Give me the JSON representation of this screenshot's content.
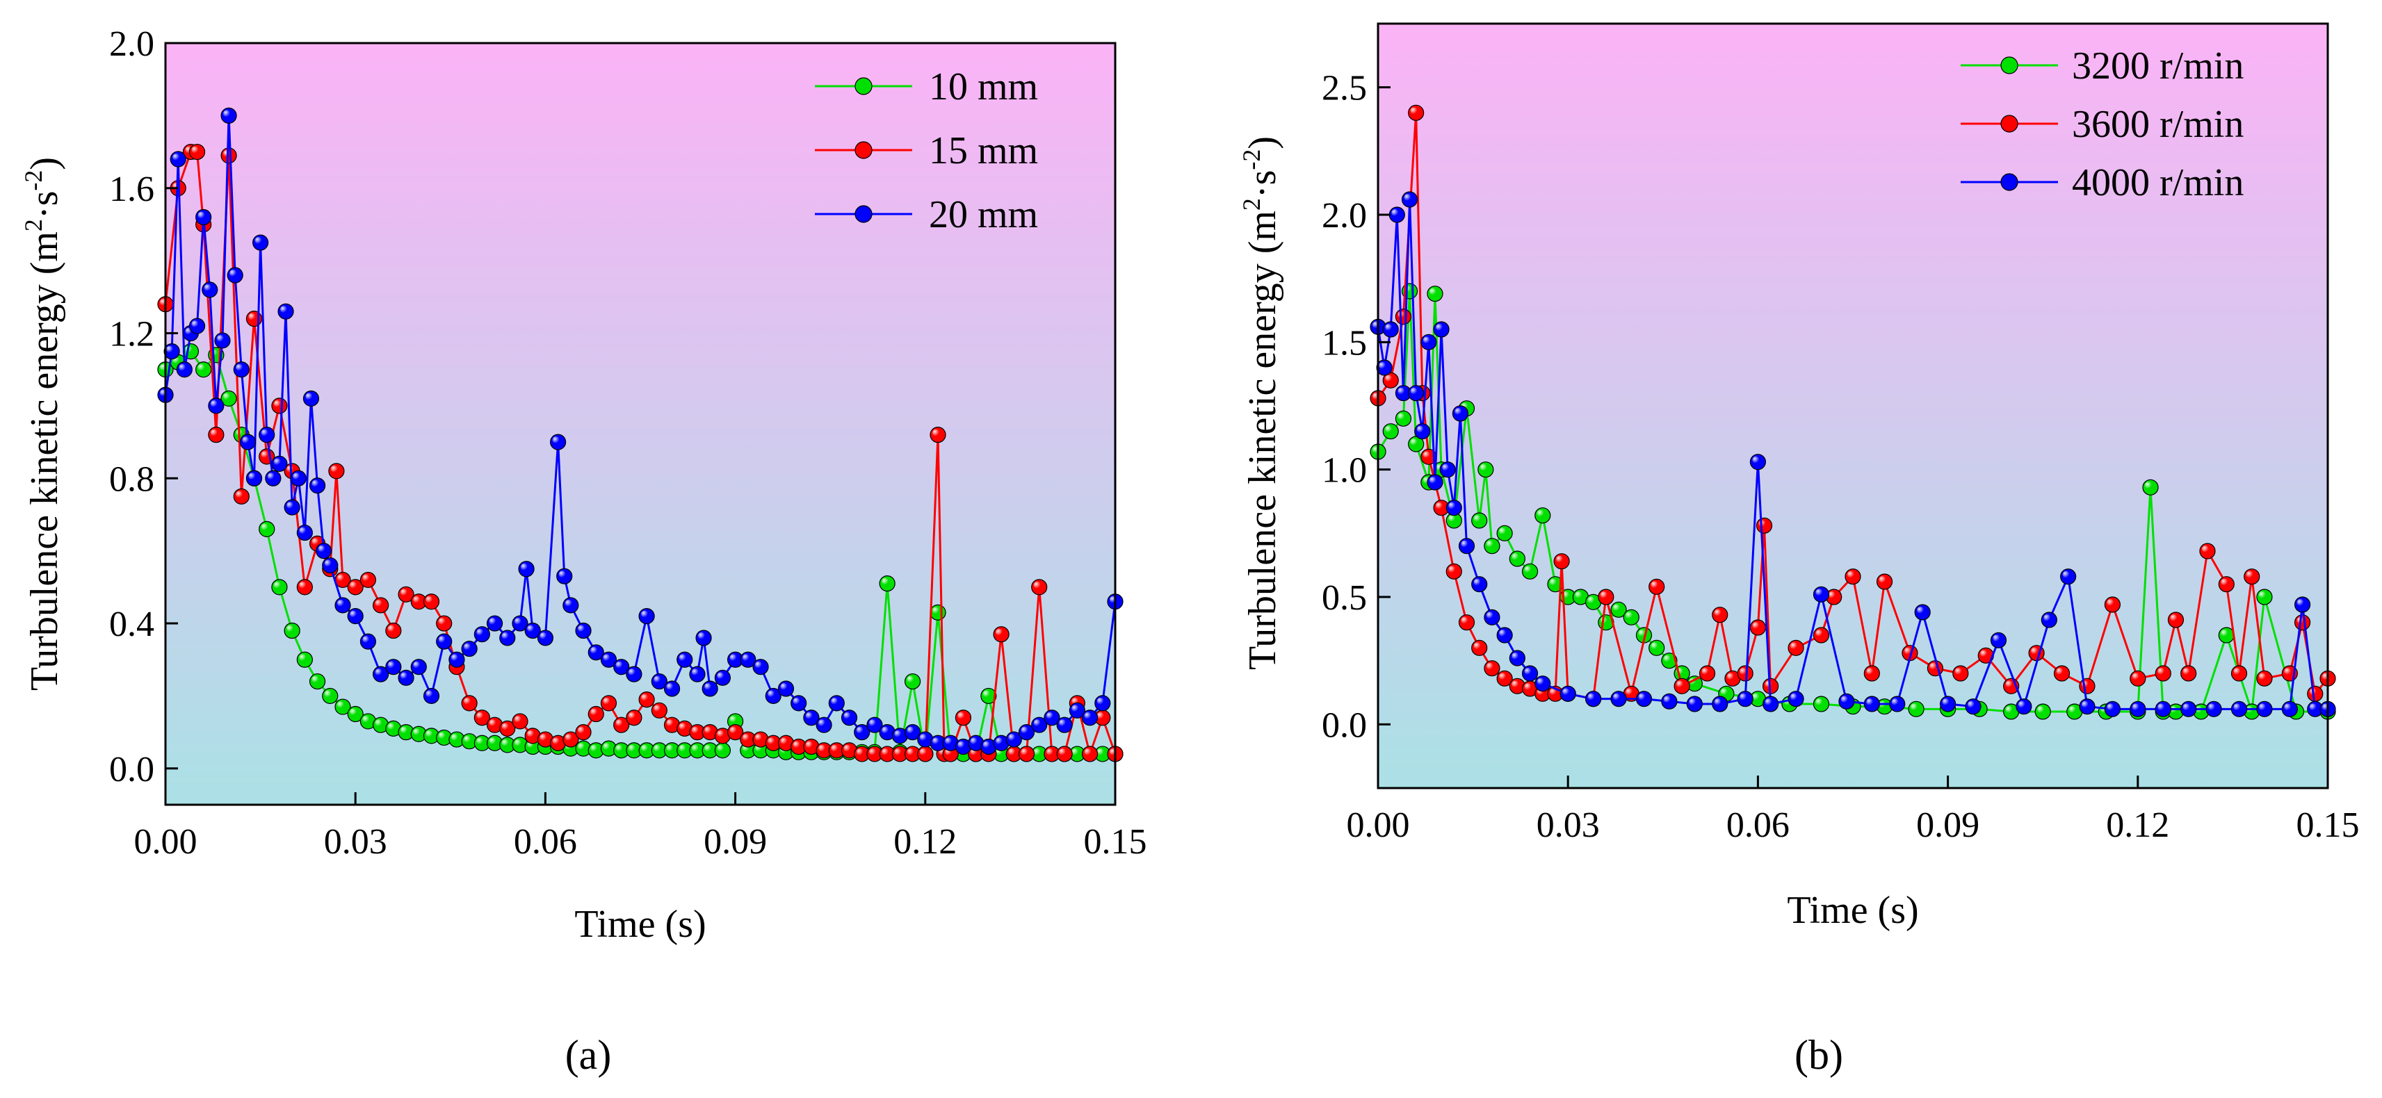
{
  "figure": {
    "panel_labels": [
      "(a)",
      "(b)"
    ]
  },
  "colors": {
    "series_green": "#00e000",
    "series_red": "#ff0000",
    "series_blue": "#0000ff",
    "bg_top": "#fbb3f6",
    "bg_bottom": "#abe1e6"
  },
  "chart_data": [
    {
      "type": "line",
      "panel": "a",
      "title": "",
      "xlabel": "Time (s)",
      "ylabel_main": "Turbulence kinetic energy (m",
      "ylabel_unit": "2",
      "ylabel_mid": "·s",
      "ylabel_unit2": "-2",
      "ylabel_tail": ")",
      "xlim": [
        0.0,
        0.15
      ],
      "ylim": [
        -0.1,
        2.0
      ],
      "xticks": [
        0.0,
        0.03,
        0.06,
        0.09,
        0.12,
        0.15
      ],
      "xtick_labels": [
        "0.00",
        "0.03",
        "0.06",
        "0.09",
        "0.12",
        "0.15"
      ],
      "yticks": [
        0.0,
        0.4,
        0.8,
        1.2,
        1.6,
        2.0
      ],
      "ytick_labels": [
        "0.0",
        "0.4",
        "0.8",
        "1.2",
        "1.6",
        "2.0"
      ],
      "legend_position": "top-right",
      "series": [
        {
          "name": "10 mm",
          "color": "#00e000",
          "x": [
            0.0,
            0.002,
            0.004,
            0.006,
            0.008,
            0.01,
            0.012,
            0.014,
            0.016,
            0.018,
            0.02,
            0.022,
            0.024,
            0.026,
            0.028,
            0.03,
            0.032,
            0.034,
            0.036,
            0.038,
            0.04,
            0.042,
            0.044,
            0.046,
            0.048,
            0.05,
            0.052,
            0.054,
            0.056,
            0.058,
            0.06,
            0.062,
            0.064,
            0.066,
            0.068,
            0.07,
            0.072,
            0.074,
            0.076,
            0.078,
            0.08,
            0.082,
            0.084,
            0.086,
            0.088,
            0.09,
            0.092,
            0.094,
            0.096,
            0.098,
            0.1,
            0.102,
            0.104,
            0.106,
            0.108,
            0.11,
            0.112,
            0.114,
            0.116,
            0.118,
            0.12,
            0.122,
            0.124,
            0.126,
            0.128,
            0.13,
            0.132,
            0.134,
            0.136,
            0.138,
            0.14,
            0.142,
            0.144,
            0.146,
            0.148,
            0.15
          ],
          "values": [
            1.1,
            1.12,
            1.15,
            1.1,
            1.14,
            1.02,
            0.92,
            0.8,
            0.66,
            0.5,
            0.38,
            0.3,
            0.24,
            0.2,
            0.17,
            0.15,
            0.13,
            0.12,
            0.11,
            0.1,
            0.095,
            0.09,
            0.085,
            0.08,
            0.075,
            0.07,
            0.07,
            0.065,
            0.065,
            0.06,
            0.06,
            0.06,
            0.055,
            0.055,
            0.05,
            0.055,
            0.05,
            0.05,
            0.05,
            0.05,
            0.05,
            0.05,
            0.05,
            0.05,
            0.05,
            0.13,
            0.05,
            0.05,
            0.05,
            0.045,
            0.045,
            0.045,
            0.045,
            0.045,
            0.045,
            0.045,
            0.045,
            0.51,
            0.045,
            0.24,
            0.04,
            0.43,
            0.04,
            0.04,
            0.04,
            0.2,
            0.04,
            0.04,
            0.04,
            0.04,
            0.04,
            0.04,
            0.04,
            0.04,
            0.04,
            0.04
          ]
        },
        {
          "name": "15 mm",
          "color": "#ff0000",
          "x": [
            0.0,
            0.002,
            0.004,
            0.005,
            0.006,
            0.008,
            0.01,
            0.012,
            0.014,
            0.016,
            0.018,
            0.02,
            0.022,
            0.024,
            0.026,
            0.027,
            0.028,
            0.03,
            0.032,
            0.034,
            0.036,
            0.038,
            0.04,
            0.042,
            0.044,
            0.046,
            0.048,
            0.05,
            0.052,
            0.054,
            0.056,
            0.058,
            0.06,
            0.062,
            0.064,
            0.066,
            0.068,
            0.07,
            0.072,
            0.074,
            0.076,
            0.078,
            0.08,
            0.082,
            0.084,
            0.086,
            0.088,
            0.09,
            0.092,
            0.094,
            0.096,
            0.098,
            0.1,
            0.102,
            0.104,
            0.106,
            0.108,
            0.11,
            0.112,
            0.114,
            0.116,
            0.118,
            0.12,
            0.122,
            0.123,
            0.124,
            0.126,
            0.128,
            0.13,
            0.132,
            0.134,
            0.136,
            0.138,
            0.14,
            0.142,
            0.144,
            0.146,
            0.148,
            0.15
          ],
          "values": [
            1.28,
            1.6,
            1.7,
            1.7,
            1.5,
            0.92,
            1.69,
            0.75,
            1.24,
            0.86,
            1.0,
            0.82,
            0.5,
            0.62,
            0.55,
            0.82,
            0.52,
            0.5,
            0.52,
            0.45,
            0.38,
            0.48,
            0.46,
            0.46,
            0.4,
            0.28,
            0.18,
            0.14,
            0.12,
            0.11,
            0.13,
            0.09,
            0.08,
            0.07,
            0.08,
            0.1,
            0.15,
            0.18,
            0.12,
            0.14,
            0.19,
            0.16,
            0.12,
            0.11,
            0.1,
            0.1,
            0.09,
            0.1,
            0.08,
            0.08,
            0.07,
            0.07,
            0.06,
            0.06,
            0.05,
            0.05,
            0.05,
            0.04,
            0.04,
            0.04,
            0.04,
            0.04,
            0.04,
            0.92,
            0.04,
            0.04,
            0.14,
            0.04,
            0.04,
            0.37,
            0.04,
            0.04,
            0.5,
            0.04,
            0.04,
            0.18,
            0.04,
            0.14,
            0.04
          ]
        },
        {
          "name": "20 mm",
          "color": "#0000ff",
          "x": [
            0.0,
            0.001,
            0.002,
            0.003,
            0.004,
            0.005,
            0.006,
            0.007,
            0.008,
            0.009,
            0.01,
            0.011,
            0.012,
            0.013,
            0.014,
            0.015,
            0.016,
            0.017,
            0.018,
            0.019,
            0.02,
            0.021,
            0.022,
            0.023,
            0.024,
            0.025,
            0.026,
            0.028,
            0.03,
            0.032,
            0.034,
            0.036,
            0.038,
            0.04,
            0.042,
            0.044,
            0.046,
            0.048,
            0.05,
            0.052,
            0.054,
            0.056,
            0.057,
            0.058,
            0.06,
            0.062,
            0.063,
            0.064,
            0.066,
            0.068,
            0.07,
            0.072,
            0.074,
            0.076,
            0.078,
            0.08,
            0.082,
            0.084,
            0.085,
            0.086,
            0.088,
            0.09,
            0.092,
            0.094,
            0.096,
            0.098,
            0.1,
            0.102,
            0.104,
            0.106,
            0.108,
            0.11,
            0.112,
            0.114,
            0.116,
            0.118,
            0.12,
            0.122,
            0.124,
            0.126,
            0.128,
            0.13,
            0.132,
            0.134,
            0.136,
            0.138,
            0.14,
            0.142,
            0.144,
            0.146,
            0.148,
            0.15
          ],
          "values": [
            1.03,
            1.15,
            1.68,
            1.1,
            1.2,
            1.22,
            1.52,
            1.32,
            1.0,
            1.18,
            1.8,
            1.36,
            1.1,
            0.9,
            0.8,
            1.45,
            0.92,
            0.8,
            0.84,
            1.26,
            0.72,
            0.8,
            0.65,
            1.02,
            0.78,
            0.6,
            0.56,
            0.45,
            0.42,
            0.35,
            0.26,
            0.28,
            0.25,
            0.28,
            0.2,
            0.35,
            0.3,
            0.33,
            0.37,
            0.4,
            0.36,
            0.4,
            0.55,
            0.38,
            0.36,
            0.9,
            0.53,
            0.45,
            0.38,
            0.32,
            0.3,
            0.28,
            0.26,
            0.42,
            0.24,
            0.22,
            0.3,
            0.26,
            0.36,
            0.22,
            0.25,
            0.3,
            0.3,
            0.28,
            0.2,
            0.22,
            0.18,
            0.14,
            0.12,
            0.18,
            0.14,
            0.1,
            0.12,
            0.1,
            0.09,
            0.1,
            0.08,
            0.07,
            0.07,
            0.06,
            0.07,
            0.06,
            0.07,
            0.08,
            0.1,
            0.12,
            0.14,
            0.12,
            0.16,
            0.14,
            0.18,
            0.46
          ]
        }
      ]
    },
    {
      "type": "line",
      "panel": "b",
      "title": "",
      "xlabel": "Time (s)",
      "ylabel_main": "Turbulence kinetic energy (m",
      "ylabel_unit": "2",
      "ylabel_mid": "·s",
      "ylabel_unit2": "-2",
      "ylabel_tail": ")",
      "xlim": [
        0.0,
        0.15
      ],
      "ylim": [
        -0.25,
        2.75
      ],
      "xticks": [
        0.0,
        0.03,
        0.06,
        0.09,
        0.12,
        0.15
      ],
      "xtick_labels": [
        "0.00",
        "0.03",
        "0.06",
        "0.09",
        "0.12",
        "0.15"
      ],
      "yticks": [
        0.0,
        0.5,
        1.0,
        1.5,
        2.0,
        2.5
      ],
      "ytick_labels": [
        "0.0",
        "0.5",
        "1.0",
        "1.5",
        "2.0",
        "2.5"
      ],
      "legend_position": "top-right",
      "series": [
        {
          "name": "3200 r/min",
          "color": "#00e000",
          "x": [
            0.0,
            0.002,
            0.004,
            0.005,
            0.006,
            0.008,
            0.009,
            0.01,
            0.012,
            0.014,
            0.016,
            0.017,
            0.018,
            0.02,
            0.022,
            0.024,
            0.026,
            0.028,
            0.03,
            0.032,
            0.034,
            0.036,
            0.038,
            0.04,
            0.042,
            0.044,
            0.046,
            0.048,
            0.05,
            0.055,
            0.06,
            0.065,
            0.07,
            0.075,
            0.08,
            0.085,
            0.09,
            0.095,
            0.1,
            0.105,
            0.11,
            0.115,
            0.12,
            0.122,
            0.124,
            0.126,
            0.13,
            0.134,
            0.138,
            0.14,
            0.145,
            0.15
          ],
          "values": [
            1.07,
            1.15,
            1.2,
            1.7,
            1.1,
            0.95,
            1.69,
            1.0,
            0.8,
            1.24,
            0.8,
            1.0,
            0.7,
            0.75,
            0.65,
            0.6,
            0.82,
            0.55,
            0.5,
            0.5,
            0.48,
            0.4,
            0.45,
            0.42,
            0.35,
            0.3,
            0.25,
            0.2,
            0.16,
            0.12,
            0.1,
            0.08,
            0.08,
            0.07,
            0.07,
            0.06,
            0.06,
            0.06,
            0.05,
            0.05,
            0.05,
            0.05,
            0.05,
            0.93,
            0.05,
            0.05,
            0.05,
            0.35,
            0.05,
            0.5,
            0.05,
            0.05
          ]
        },
        {
          "name": "3600 r/min",
          "color": "#ff0000",
          "x": [
            0.0,
            0.002,
            0.004,
            0.006,
            0.007,
            0.008,
            0.01,
            0.012,
            0.014,
            0.016,
            0.018,
            0.02,
            0.022,
            0.024,
            0.026,
            0.028,
            0.029,
            0.03,
            0.034,
            0.036,
            0.04,
            0.044,
            0.048,
            0.052,
            0.054,
            0.056,
            0.058,
            0.06,
            0.061,
            0.062,
            0.066,
            0.07,
            0.072,
            0.075,
            0.078,
            0.08,
            0.084,
            0.088,
            0.092,
            0.096,
            0.1,
            0.104,
            0.108,
            0.112,
            0.116,
            0.12,
            0.124,
            0.126,
            0.128,
            0.131,
            0.134,
            0.136,
            0.138,
            0.14,
            0.144,
            0.146,
            0.148,
            0.15
          ],
          "values": [
            1.28,
            1.35,
            1.6,
            2.4,
            1.3,
            1.05,
            0.85,
            0.6,
            0.4,
            0.3,
            0.22,
            0.18,
            0.15,
            0.14,
            0.12,
            0.12,
            0.64,
            0.12,
            0.1,
            0.5,
            0.12,
            0.54,
            0.15,
            0.2,
            0.43,
            0.18,
            0.2,
            0.38,
            0.78,
            0.15,
            0.3,
            0.35,
            0.5,
            0.58,
            0.2,
            0.56,
            0.28,
            0.22,
            0.2,
            0.27,
            0.15,
            0.28,
            0.2,
            0.15,
            0.47,
            0.18,
            0.2,
            0.41,
            0.2,
            0.68,
            0.55,
            0.2,
            0.58,
            0.18,
            0.2,
            0.4,
            0.12,
            0.18
          ]
        },
        {
          "name": "4000 r/min",
          "color": "#0000ff",
          "x": [
            0.0,
            0.001,
            0.002,
            0.003,
            0.004,
            0.005,
            0.006,
            0.007,
            0.008,
            0.009,
            0.01,
            0.011,
            0.012,
            0.013,
            0.014,
            0.016,
            0.018,
            0.02,
            0.022,
            0.024,
            0.026,
            0.03,
            0.034,
            0.038,
            0.042,
            0.046,
            0.05,
            0.054,
            0.058,
            0.06,
            0.062,
            0.066,
            0.07,
            0.074,
            0.078,
            0.082,
            0.086,
            0.09,
            0.094,
            0.098,
            0.102,
            0.106,
            0.109,
            0.112,
            0.116,
            0.12,
            0.124,
            0.128,
            0.132,
            0.136,
            0.14,
            0.144,
            0.146,
            0.148,
            0.15
          ],
          "values": [
            1.56,
            1.4,
            1.55,
            2.0,
            1.3,
            2.06,
            1.3,
            1.15,
            1.5,
            0.95,
            1.55,
            1.0,
            0.85,
            1.22,
            0.7,
            0.55,
            0.42,
            0.35,
            0.26,
            0.2,
            0.16,
            0.12,
            0.1,
            0.1,
            0.1,
            0.09,
            0.08,
            0.08,
            0.1,
            1.03,
            0.08,
            0.1,
            0.51,
            0.09,
            0.08,
            0.08,
            0.44,
            0.08,
            0.07,
            0.33,
            0.07,
            0.41,
            0.58,
            0.07,
            0.06,
            0.06,
            0.06,
            0.06,
            0.06,
            0.06,
            0.06,
            0.06,
            0.47,
            0.06,
            0.06
          ]
        }
      ]
    }
  ]
}
